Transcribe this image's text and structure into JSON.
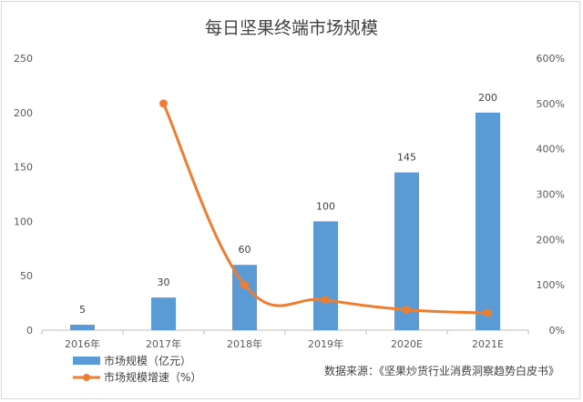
{
  "chart_data": {
    "type": "bar",
    "title": "每日坚果终端市场规模",
    "categories": [
      "2016年",
      "2017年",
      "2018年",
      "2019年",
      "2020E",
      "2021E"
    ],
    "series": [
      {
        "name": "市场规模（亿元）",
        "type": "bar",
        "axis": "left",
        "color": "#5b9bd5",
        "values": [
          5,
          30,
          60,
          100,
          145,
          200
        ],
        "data_labels": [
          "5",
          "30",
          "60",
          "100",
          "145",
          "200"
        ]
      },
      {
        "name": "市场规模增速（%）",
        "type": "line",
        "axis": "right",
        "color": "#ed7d31",
        "values": [
          null,
          500,
          100,
          66.7,
          45,
          38
        ]
      }
    ],
    "y_left": {
      "min": 0,
      "max": 250,
      "ticks": [
        0,
        50,
        100,
        150,
        200,
        250
      ],
      "tick_labels": [
        "0",
        "50",
        "100",
        "150",
        "200",
        "250"
      ]
    },
    "y_right": {
      "min": 0,
      "max": 600,
      "ticks": [
        0,
        100,
        200,
        300,
        400,
        500,
        600
      ],
      "tick_labels": [
        "0%",
        "100%",
        "200%",
        "300%",
        "400%",
        "500%",
        "600%"
      ]
    },
    "grid": false,
    "legend_position": "bottom-left",
    "source_note": "数据来源：《坚果炒货行业消费洞察趋势白皮书》"
  }
}
